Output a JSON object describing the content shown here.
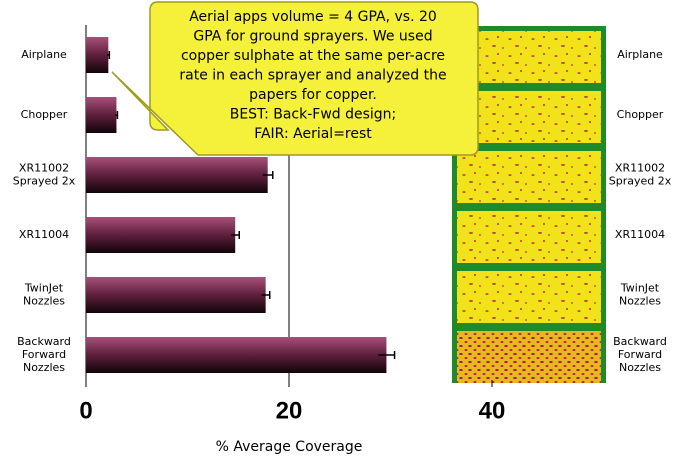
{
  "chart_data": {
    "type": "bar",
    "orientation": "horizontal",
    "categories": [
      "Airplane",
      "Chopper",
      "XR11002\nSprayed 2x",
      "XR11004",
      "TwinJet\nNozzles",
      "Backward\nForward\nNozzles"
    ],
    "values": [
      2.2,
      3.0,
      17.9,
      14.7,
      17.7,
      29.6
    ],
    "errors": [
      0.1,
      0.1,
      0.5,
      0.4,
      0.4,
      0.8
    ],
    "color": "#8b3a5e",
    "xlim": [
      0,
      40
    ],
    "xticks": [
      0,
      20,
      40
    ],
    "xlabel": "% Average Coverage",
    "grid": true,
    "annotation": [
      "Aerial apps volume = 4 GPA, vs. 20",
      "GPA for ground sprayers.  We used",
      "copper sulphate at the same per-acre",
      "rate in each sprayer and analyzed the",
      "papers for copper.",
      "BEST: Back-Fwd design;",
      "FAIR: Aerial=rest"
    ]
  }
}
